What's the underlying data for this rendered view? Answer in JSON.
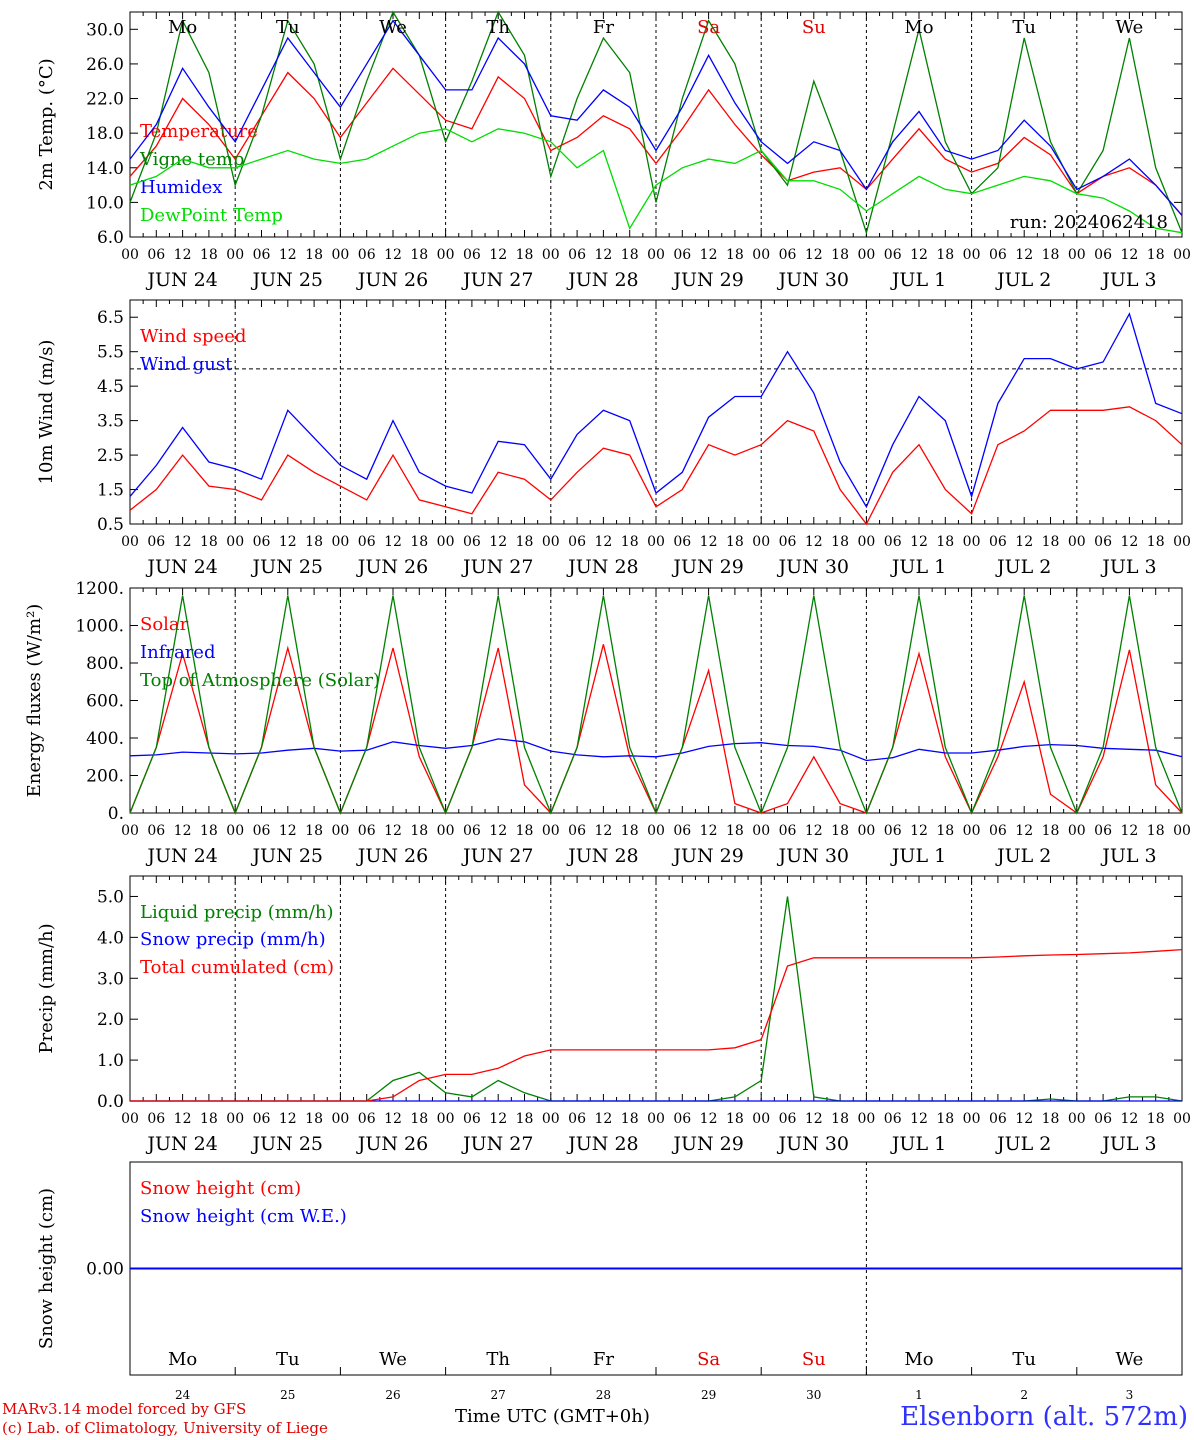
{
  "run_label": "run: 2024062418",
  "footer": {
    "model": "MARv3.14 model forced by GFS",
    "credit": "(c) Lab. of Climatology, University of Liege",
    "station": "Elsenborn (alt. 572m)",
    "time_label": "Time UTC (GMT+0h)"
  },
  "colors": {
    "red": "#ff0000",
    "green": "#008000",
    "blue": "#0000ff",
    "lightgreen": "#00dd00",
    "purple": "#800080"
  },
  "days": {
    "names": [
      "Mo",
      "Tu",
      "We",
      "Th",
      "Fr",
      "Sa",
      "Su",
      "Mo",
      "Tu",
      "We"
    ],
    "name_colors": [
      "#000",
      "#000",
      "#000",
      "#000",
      "#000",
      "#e00000",
      "#e00000",
      "#000",
      "#000",
      "#000"
    ],
    "dates": [
      "JUN 24",
      "JUN 25",
      "JUN 26",
      "JUN 27",
      "JUN 28",
      "JUN 29",
      "JUN 30",
      "JUL  1",
      "JUL  2",
      "JUL  3"
    ],
    "short_dates": [
      "24",
      "25",
      "26",
      "27",
      "28",
      "29",
      "30",
      "1",
      "2",
      "3"
    ],
    "hour_labels": [
      "00",
      "06",
      "12",
      "18"
    ],
    "final_hour_label": "00"
  },
  "chart_data": [
    {
      "type": "line",
      "ylabel": "2m Temp. (°C)",
      "ylim": [
        6.0,
        32.0
      ],
      "yticks": [
        "6.0",
        "10.0",
        "14.0",
        "18.0",
        "22.0",
        "26.0",
        "30.0"
      ],
      "x_unit": "hours since 2024-06-24 00 UTC",
      "x": [
        0,
        6,
        12,
        18,
        24,
        30,
        36,
        42,
        48,
        54,
        60,
        66,
        72,
        78,
        84,
        90,
        96,
        102,
        108,
        114,
        120,
        126,
        132,
        138,
        144,
        150,
        156,
        162,
        168,
        174,
        180,
        186,
        192,
        198,
        204,
        210,
        216,
        222,
        228,
        234,
        240
      ],
      "series": [
        {
          "name": "Temperature",
          "color": "#ff0000",
          "values": [
            13.0,
            16.5,
            22.0,
            19.0,
            15.0,
            20.0,
            25.0,
            22.0,
            17.5,
            21.5,
            25.5,
            22.5,
            19.5,
            18.5,
            24.5,
            22.0,
            16.0,
            17.5,
            20.0,
            18.5,
            14.5,
            18.5,
            23.0,
            19.0,
            15.5,
            12.5,
            13.5,
            14.0,
            11.5,
            15.0,
            18.5,
            15.0,
            13.5,
            14.5,
            17.5,
            15.5,
            11.0,
            13.0,
            14.0,
            12.0,
            8.5
          ]
        },
        {
          "name": "Vigne temp",
          "color": "#008000",
          "values": [
            10.0,
            18.0,
            31.0,
            25.0,
            12.0,
            20.0,
            31.0,
            26.0,
            15.0,
            24.0,
            32.0,
            27.0,
            17.0,
            24.0,
            32.0,
            27.0,
            13.0,
            22.0,
            29.0,
            25.0,
            10.0,
            22.0,
            31.0,
            26.0,
            16.0,
            12.0,
            24.0,
            16.0,
            6.5,
            18.0,
            30.0,
            17.0,
            11.0,
            14.0,
            29.0,
            17.0,
            11.0,
            16.0,
            29.0,
            14.0,
            6.5
          ]
        },
        {
          "name": "Humidex",
          "color": "#0000ff",
          "values": [
            15.0,
            19.0,
            25.5,
            21.0,
            17.0,
            23.0,
            29.0,
            25.0,
            21.0,
            26.0,
            31.0,
            27.0,
            23.0,
            23.0,
            29.0,
            26.0,
            20.0,
            19.5,
            23.0,
            21.0,
            16.0,
            21.0,
            27.0,
            21.5,
            17.0,
            14.5,
            17.0,
            16.0,
            11.5,
            17.0,
            20.5,
            16.0,
            15.0,
            16.0,
            19.5,
            16.5,
            11.5,
            13.0,
            15.0,
            12.0,
            8.5
          ]
        },
        {
          "name": "DewPoint Temp",
          "color": "#00dd00",
          "values": [
            12.0,
            13.0,
            15.0,
            14.0,
            14.0,
            15.0,
            16.0,
            15.0,
            14.5,
            15.0,
            16.5,
            18.0,
            18.5,
            17.0,
            18.5,
            18.0,
            17.0,
            14.0,
            16.0,
            7.0,
            12.0,
            14.0,
            15.0,
            14.5,
            16.0,
            12.5,
            12.5,
            11.5,
            9.0,
            11.0,
            13.0,
            11.5,
            11.0,
            12.0,
            13.0,
            12.5,
            11.0,
            10.5,
            9.0,
            7.0,
            6.5
          ]
        }
      ]
    },
    {
      "type": "line",
      "ylabel": "10m Wind (m/s)",
      "ylim": [
        0.5,
        7.0
      ],
      "yticks": [
        "0.5",
        "1.5",
        "2.5",
        "3.5",
        "4.5",
        "5.5",
        "6.5"
      ],
      "reference_line": 5.0,
      "x": [
        0,
        6,
        12,
        18,
        24,
        30,
        36,
        42,
        48,
        54,
        60,
        66,
        72,
        78,
        84,
        90,
        96,
        102,
        108,
        114,
        120,
        126,
        132,
        138,
        144,
        150,
        156,
        162,
        168,
        174,
        180,
        186,
        192,
        198,
        204,
        210,
        216,
        222,
        228,
        234,
        240
      ],
      "series": [
        {
          "name": "Wind speed",
          "color": "#ff0000",
          "values": [
            0.9,
            1.5,
            2.5,
            1.6,
            1.5,
            1.2,
            2.5,
            2.0,
            1.6,
            1.2,
            2.5,
            1.2,
            1.0,
            0.8,
            2.0,
            1.8,
            1.2,
            2.0,
            2.7,
            2.5,
            1.0,
            1.5,
            2.8,
            2.5,
            2.8,
            3.5,
            3.2,
            1.5,
            0.5,
            2.0,
            2.8,
            1.5,
            0.8,
            2.8,
            3.2,
            3.8,
            3.8,
            3.8,
            3.9,
            3.5,
            2.8
          ]
        },
        {
          "name": "Wind gust",
          "color": "#0000ff",
          "values": [
            1.3,
            2.2,
            3.3,
            2.3,
            2.1,
            1.8,
            3.8,
            3.0,
            2.2,
            1.8,
            3.5,
            2.0,
            1.6,
            1.4,
            2.9,
            2.8,
            1.8,
            3.1,
            3.8,
            3.5,
            1.4,
            2.0,
            3.6,
            4.2,
            4.2,
            5.5,
            4.3,
            2.3,
            1.0,
            2.8,
            4.2,
            3.5,
            1.3,
            4.0,
            5.3,
            5.3,
            5.0,
            5.2,
            6.6,
            4.0,
            3.7
          ]
        }
      ]
    },
    {
      "type": "line",
      "ylabel": "Energy fluxes (W/m²)",
      "ylim": [
        0,
        1200
      ],
      "yticks": [
        "0.",
        "200.",
        "400.",
        "600.",
        "800.",
        "1000.",
        "1200."
      ],
      "x": [
        0,
        6,
        12,
        18,
        24,
        30,
        36,
        42,
        48,
        54,
        60,
        66,
        72,
        78,
        84,
        90,
        96,
        102,
        108,
        114,
        120,
        126,
        132,
        138,
        144,
        150,
        156,
        162,
        168,
        174,
        180,
        186,
        192,
        198,
        204,
        210,
        216,
        222,
        228,
        234,
        240
      ],
      "series": [
        {
          "name": "Solar",
          "color": "#ff0000",
          "values": [
            0,
            350,
            850,
            350,
            0,
            350,
            880,
            350,
            0,
            350,
            880,
            300,
            0,
            350,
            880,
            150,
            0,
            350,
            900,
            300,
            0,
            350,
            760,
            50,
            0,
            50,
            300,
            50,
            0,
            350,
            850,
            300,
            0,
            300,
            700,
            100,
            0,
            300,
            870,
            150,
            0
          ]
        },
        {
          "name": "Infrared",
          "color": "#0000ff",
          "values": [
            305,
            310,
            325,
            320,
            315,
            320,
            335,
            345,
            330,
            335,
            380,
            360,
            345,
            360,
            395,
            380,
            330,
            310,
            300,
            305,
            300,
            320,
            355,
            370,
            375,
            360,
            355,
            335,
            280,
            295,
            340,
            320,
            320,
            335,
            355,
            365,
            360,
            345,
            340,
            335,
            300
          ]
        },
        {
          "name": "Top of Atmosphere (Solar)",
          "color": "#008000",
          "values": [
            0,
            350,
            1160,
            350,
            0,
            350,
            1160,
            350,
            0,
            350,
            1160,
            350,
            0,
            350,
            1160,
            350,
            0,
            350,
            1160,
            350,
            0,
            350,
            1160,
            350,
            0,
            350,
            1160,
            350,
            0,
            350,
            1160,
            350,
            0,
            350,
            1160,
            350,
            0,
            350,
            1160,
            350,
            0
          ]
        }
      ]
    },
    {
      "type": "line",
      "ylabel": "Precip (mm/h)",
      "ylim": [
        0.0,
        5.5
      ],
      "yticks": [
        "0.0",
        "1.0",
        "2.0",
        "3.0",
        "4.0",
        "5.0"
      ],
      "x": [
        0,
        6,
        12,
        18,
        24,
        30,
        36,
        42,
        48,
        54,
        60,
        66,
        72,
        78,
        84,
        90,
        96,
        102,
        108,
        114,
        120,
        126,
        132,
        138,
        144,
        150,
        156,
        162,
        168,
        174,
        180,
        186,
        192,
        198,
        204,
        210,
        216,
        222,
        228,
        234,
        240
      ],
      "series": [
        {
          "name": "Liquid precip (mm/h)",
          "color": "#008000",
          "values": [
            0,
            0,
            0,
            0,
            0,
            0,
            0,
            0,
            0,
            0,
            0.5,
            0.7,
            0.2,
            0.1,
            0.5,
            0.2,
            0,
            0,
            0,
            0,
            0,
            0,
            0,
            0.1,
            0.5,
            5.0,
            0.1,
            0,
            0,
            0,
            0,
            0,
            0,
            0,
            0,
            0.05,
            0,
            0,
            0.1,
            0.1,
            0
          ]
        },
        {
          "name": "Snow precip (mm/h)",
          "color": "#0000ff",
          "values": [
            0,
            0,
            0,
            0,
            0,
            0,
            0,
            0,
            0,
            0,
            0,
            0,
            0,
            0,
            0,
            0,
            0,
            0,
            0,
            0,
            0,
            0,
            0,
            0,
            0,
            0,
            0,
            0,
            0,
            0,
            0,
            0,
            0,
            0,
            0,
            0,
            0,
            0,
            0,
            0,
            0
          ]
        },
        {
          "name": "Total cumulated (cm)",
          "color": "#ff0000",
          "values": [
            0,
            0,
            0,
            0,
            0,
            0,
            0,
            0,
            0,
            0,
            0.1,
            0.5,
            0.65,
            0.65,
            0.8,
            1.1,
            1.25,
            1.25,
            1.25,
            1.25,
            1.25,
            1.25,
            1.25,
            1.3,
            1.5,
            3.3,
            3.5,
            3.5,
            3.5,
            3.5,
            3.5,
            3.5,
            3.5,
            3.52,
            3.55,
            3.57,
            3.58,
            3.6,
            3.62,
            3.66,
            3.7
          ]
        }
      ]
    },
    {
      "type": "line",
      "ylabel": "Snow height (cm)",
      "ylim": [
        -1.0,
        1.0
      ],
      "yticks": [
        "0.00"
      ],
      "x": [
        0,
        240
      ],
      "series": [
        {
          "name": "Snow height (cm)",
          "color": "#ff0000",
          "values": [
            0,
            0
          ]
        },
        {
          "name": "Snow height (cm W.E.)",
          "color": "#0000ff",
          "values": [
            0,
            0
          ]
        }
      ]
    }
  ]
}
